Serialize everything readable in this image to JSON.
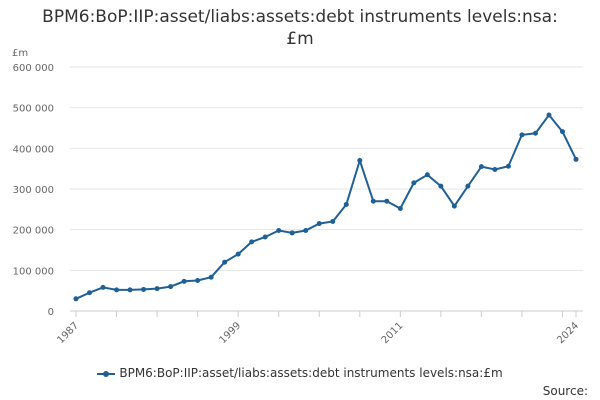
{
  "chart_data": {
    "type": "line",
    "title": "BPM6:BoP:IIP:asset/liabs:assets:debt instruments levels:nsa:£m",
    "y_unit": "£m",
    "ylim": [
      0,
      600000
    ],
    "yticks": [
      0,
      100000,
      200000,
      300000,
      400000,
      500000,
      600000
    ],
    "ytick_labels": [
      "0",
      "100 000",
      "200 000",
      "300 000",
      "400 000",
      "500 000",
      "600 000"
    ],
    "xlim": [
      1987,
      2024
    ],
    "xtick_labels": [
      "1987",
      "1999",
      "2011",
      "2024"
    ],
    "grid": true,
    "legend_position": "bottom",
    "series": [
      {
        "name": "BPM6:BoP:IIP:asset/liabs:assets:debt instruments levels:nsa:£m",
        "color": "#206095",
        "x": [
          1987,
          1988,
          1989,
          1990,
          1991,
          1992,
          1993,
          1994,
          1995,
          1996,
          1997,
          1998,
          1999,
          2000,
          2001,
          2002,
          2003,
          2004,
          2005,
          2006,
          2007,
          2008,
          2009,
          2010,
          2011,
          2012,
          2013,
          2014,
          2015,
          2016,
          2017,
          2018,
          2019,
          2020,
          2021,
          2022,
          2023,
          2024
        ],
        "values": [
          30000,
          45000,
          58000,
          52000,
          52000,
          53000,
          55000,
          60000,
          73000,
          75000,
          83000,
          120000,
          140000,
          170000,
          182000,
          198000,
          192000,
          198000,
          215000,
          220000,
          262000,
          370000,
          270000,
          270000,
          252000,
          315000,
          335000,
          307000,
          258000,
          307000,
          355000,
          348000,
          356000,
          433000,
          437000,
          482000,
          441000,
          373000
        ]
      }
    ]
  },
  "legend": {
    "label": "BPM6:BoP:IIP:asset/liabs:assets:debt instruments levels:nsa:£m"
  },
  "source": {
    "label": "Source:"
  }
}
